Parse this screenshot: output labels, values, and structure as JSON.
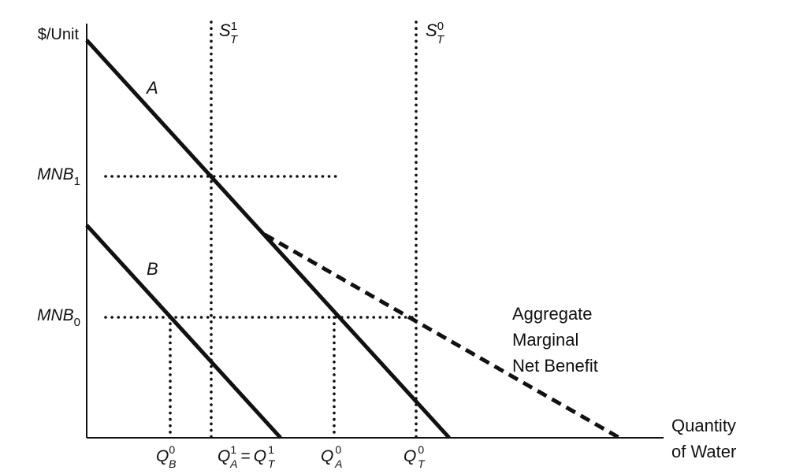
{
  "chart_data": {
    "type": "line",
    "title": "",
    "ylabel": "$/Unit",
    "xlabel": {
      "line1": "Quantity",
      "line2": "of Water"
    },
    "xlim": [
      0,
      680
    ],
    "ylim": [
      0,
      505
    ],
    "grid": false,
    "series": [
      {
        "name": "A",
        "style": "solid",
        "points": [
          [
            0,
            505
          ],
          [
            460,
            0
          ]
        ]
      },
      {
        "name": "B",
        "style": "solid",
        "points": [
          [
            0,
            270
          ],
          [
            246,
            0
          ]
        ]
      },
      {
        "name": "",
        "style": "dashed",
        "points": [
          [
            226,
            258
          ],
          [
            676,
            0
          ]
        ]
      }
    ],
    "annotations": {
      "aggregate_label": [
        "Aggregate",
        "Marginal",
        "Net Benefit"
      ]
    },
    "supply_lines": [
      {
        "base": "S",
        "sup": "1",
        "sub": "T",
        "x": 158
      },
      {
        "base": "S",
        "sup": "0",
        "sub": "T",
        "x": 418
      }
    ],
    "price_levels": [
      {
        "base": "MNB",
        "sub": "1",
        "y": 332,
        "x_end": 318
      },
      {
        "base": "MNB",
        "sub": "0",
        "y": 153,
        "x_end": 418
      }
    ],
    "drop_lines": [
      {
        "x": 106,
        "y_top": 153
      },
      {
        "x": 314,
        "y_top": 153
      }
    ],
    "x_ticks": [
      {
        "id": "qb0",
        "x": 106,
        "base": "Q",
        "sup": "0",
        "sub": "B"
      },
      {
        "id": "qa1",
        "x": 190,
        "base": "Q",
        "sup": "1",
        "sub": "A",
        "equals": "=",
        "base2": "Q",
        "sup2": "1",
        "sub2": "T"
      },
      {
        "id": "qa0",
        "x": 314,
        "base": "Q",
        "sup": "0",
        "sub": "A"
      },
      {
        "id": "qt0",
        "x": 418,
        "base": "Q",
        "sup": "0",
        "sub": "T"
      }
    ],
    "colors": {
      "line": "#111111",
      "background": "#ffffff"
    }
  }
}
